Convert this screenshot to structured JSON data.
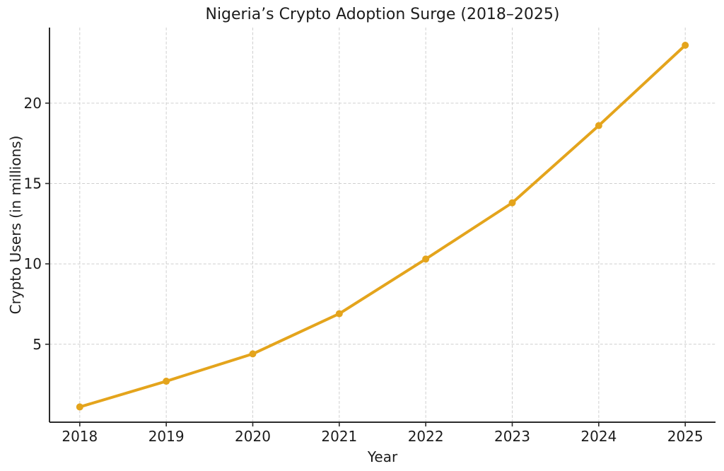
{
  "figure": {
    "background": "#ffffff"
  },
  "chart_data": {
    "type": "line",
    "title": "Nigeria’s Crypto Adoption Surge (2018–2025)",
    "xlabel": "Year",
    "ylabel": "Crypto Users (in millions)",
    "categories": [
      2018,
      2019,
      2020,
      2021,
      2022,
      2023,
      2024,
      2025
    ],
    "series": [
      {
        "name": "Crypto users (millions)",
        "values": [
          1.1,
          2.7,
          4.4,
          6.9,
          10.3,
          13.8,
          18.6,
          23.6
        ]
      }
    ],
    "xtick_labels": [
      "2018",
      "2019",
      "2020",
      "2021",
      "2022",
      "2023",
      "2024",
      "2025"
    ],
    "ytick_values": [
      5,
      10,
      15,
      20
    ],
    "ytick_labels": [
      "5",
      "10",
      "15",
      "20"
    ],
    "xlim": [
      2017.65,
      2025.35
    ],
    "ylim": [
      0.15,
      24.7
    ],
    "grid": true,
    "grid_style": "dashed",
    "legend_position": "none",
    "styles": {
      "line_color": "#E4A41C",
      "marker": "circle",
      "marker_radius": 5,
      "line_width": 4,
      "grid_color": "#cfcfcf",
      "spine_color": "#2b2b2b",
      "text_color": "#1c1c1c"
    }
  }
}
